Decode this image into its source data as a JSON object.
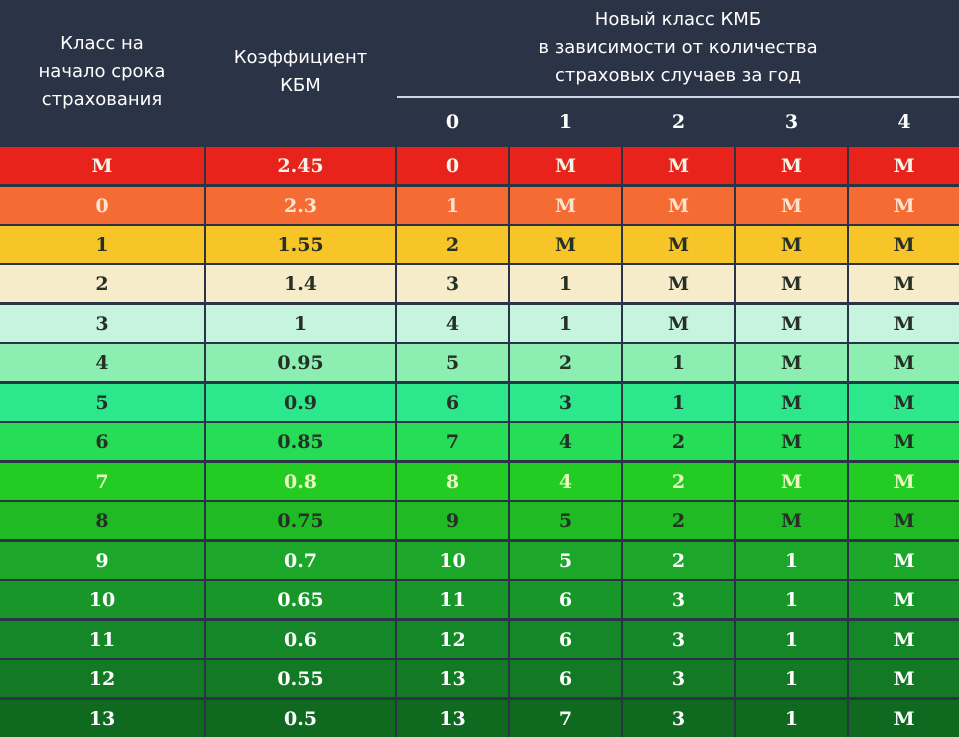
{
  "header": {
    "col_class_start": "Класс на\nначало срока\nстрахования",
    "col_coefficient": "Коэффициент\nКБМ",
    "col_new_class": "Новый класс КМБ\nв зависимости от количества\nстраховых случаев за год",
    "claims": [
      "0",
      "1",
      "2",
      "3",
      "4"
    ]
  },
  "rows": [
    {
      "cls": "М",
      "coef": "2.45",
      "next": [
        "0",
        "М",
        "М",
        "М",
        "М"
      ],
      "color": "#e8231b"
    },
    {
      "cls": "0",
      "coef": "2.3",
      "next": [
        "1",
        "М",
        "М",
        "М",
        "М"
      ],
      "color": "#f46b33"
    },
    {
      "cls": "1",
      "coef": "1.55",
      "next": [
        "2",
        "М",
        "М",
        "М",
        "М"
      ],
      "color": "#f7c528"
    },
    {
      "cls": "2",
      "coef": "1.4",
      "next": [
        "3",
        "1",
        "М",
        "М",
        "М"
      ],
      "color": "#f6ecca"
    },
    {
      "cls": "3",
      "coef": "1",
      "next": [
        "4",
        "1",
        "М",
        "М",
        "М"
      ],
      "color": "#c6f4dc"
    },
    {
      "cls": "4",
      "coef": "0.95",
      "next": [
        "5",
        "2",
        "1",
        "М",
        "М"
      ],
      "color": "#8ceeb0"
    },
    {
      "cls": "5",
      "coef": "0.9",
      "next": [
        "6",
        "3",
        "1",
        "М",
        "М"
      ],
      "color": "#2de78c"
    },
    {
      "cls": "6",
      "coef": "0.85",
      "next": [
        "7",
        "4",
        "2",
        "М",
        "М"
      ],
      "color": "#27dc56"
    },
    {
      "cls": "7",
      "coef": "0.8",
      "next": [
        "8",
        "4",
        "2",
        "М",
        "М"
      ],
      "color": "#23cc22"
    },
    {
      "cls": "8",
      "coef": "0.75",
      "next": [
        "9",
        "5",
        "2",
        "М",
        "М"
      ],
      "color": "#1fba24"
    },
    {
      "cls": "9",
      "coef": "0.7",
      "next": [
        "10",
        "5",
        "2",
        "1",
        "М"
      ],
      "color": "#1ca72a"
    },
    {
      "cls": "10",
      "coef": "0.65",
      "next": [
        "11",
        "6",
        "3",
        "1",
        "М"
      ],
      "color": "#18962a"
    },
    {
      "cls": "11",
      "coef": "0.6",
      "next": [
        "12",
        "6",
        "3",
        "1",
        "М"
      ],
      "color": "#158729"
    },
    {
      "cls": "12",
      "coef": "0.55",
      "next": [
        "13",
        "6",
        "3",
        "1",
        "М"
      ],
      "color": "#137925"
    },
    {
      "cls": "13",
      "coef": "0.5",
      "next": [
        "13",
        "7",
        "3",
        "1",
        "М"
      ],
      "color": "#0f6a20"
    }
  ]
}
